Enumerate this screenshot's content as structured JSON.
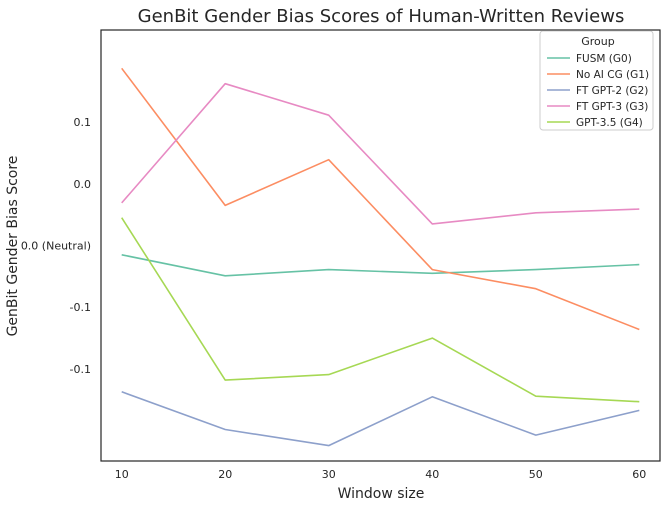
{
  "chart_data": {
    "type": "line",
    "title": "GenBit Gender Bias Scores of Human-Written Reviews",
    "xlabel": "Window size",
    "ylabel": "GenBit Gender Bias Score",
    "x": [
      10,
      20,
      30,
      40,
      50,
      60
    ],
    "xlim": [
      8,
      62
    ],
    "ylim": [
      -0.1745,
      0.1745
    ],
    "x_ticks": [
      10,
      20,
      30,
      40,
      50,
      60
    ],
    "y_ticks": [
      {
        "value": 0.1,
        "label": "0.1"
      },
      {
        "value": 0.05,
        "label": "0.0"
      },
      {
        "value": 0.0,
        "label": "0.0 (Neutral)"
      },
      {
        "value": -0.05,
        "label": "-0.1"
      },
      {
        "value": -0.1,
        "label": "-0.1"
      }
    ],
    "grid": false,
    "legend": {
      "title": "Group",
      "placement": "top-right"
    },
    "series": [
      {
        "name": "FUSM (G0)",
        "color": "#66c2a5",
        "values": [
          -0.0075,
          -0.0245,
          -0.0195,
          -0.0225,
          -0.0195,
          -0.0155
        ]
      },
      {
        "name": "No AI CG (G1)",
        "color": "#fc8d62",
        "values": [
          0.1435,
          0.0325,
          0.0695,
          -0.0195,
          -0.035,
          -0.068
        ]
      },
      {
        "name": "FT GPT-2 (G2)",
        "color": "#8da0cb",
        "values": [
          -0.1185,
          -0.149,
          -0.162,
          -0.1225,
          -0.1535,
          -0.1335
        ]
      },
      {
        "name": "FT GPT-3 (G3)",
        "color": "#e78ac3",
        "values": [
          0.0345,
          0.131,
          0.1055,
          0.0175,
          0.0265,
          0.0295
        ]
      },
      {
        "name": "GPT-3.5 (G4)",
        "color": "#a6d854",
        "values": [
          0.0225,
          -0.109,
          -0.1045,
          -0.075,
          -0.122,
          -0.1265
        ]
      }
    ]
  }
}
